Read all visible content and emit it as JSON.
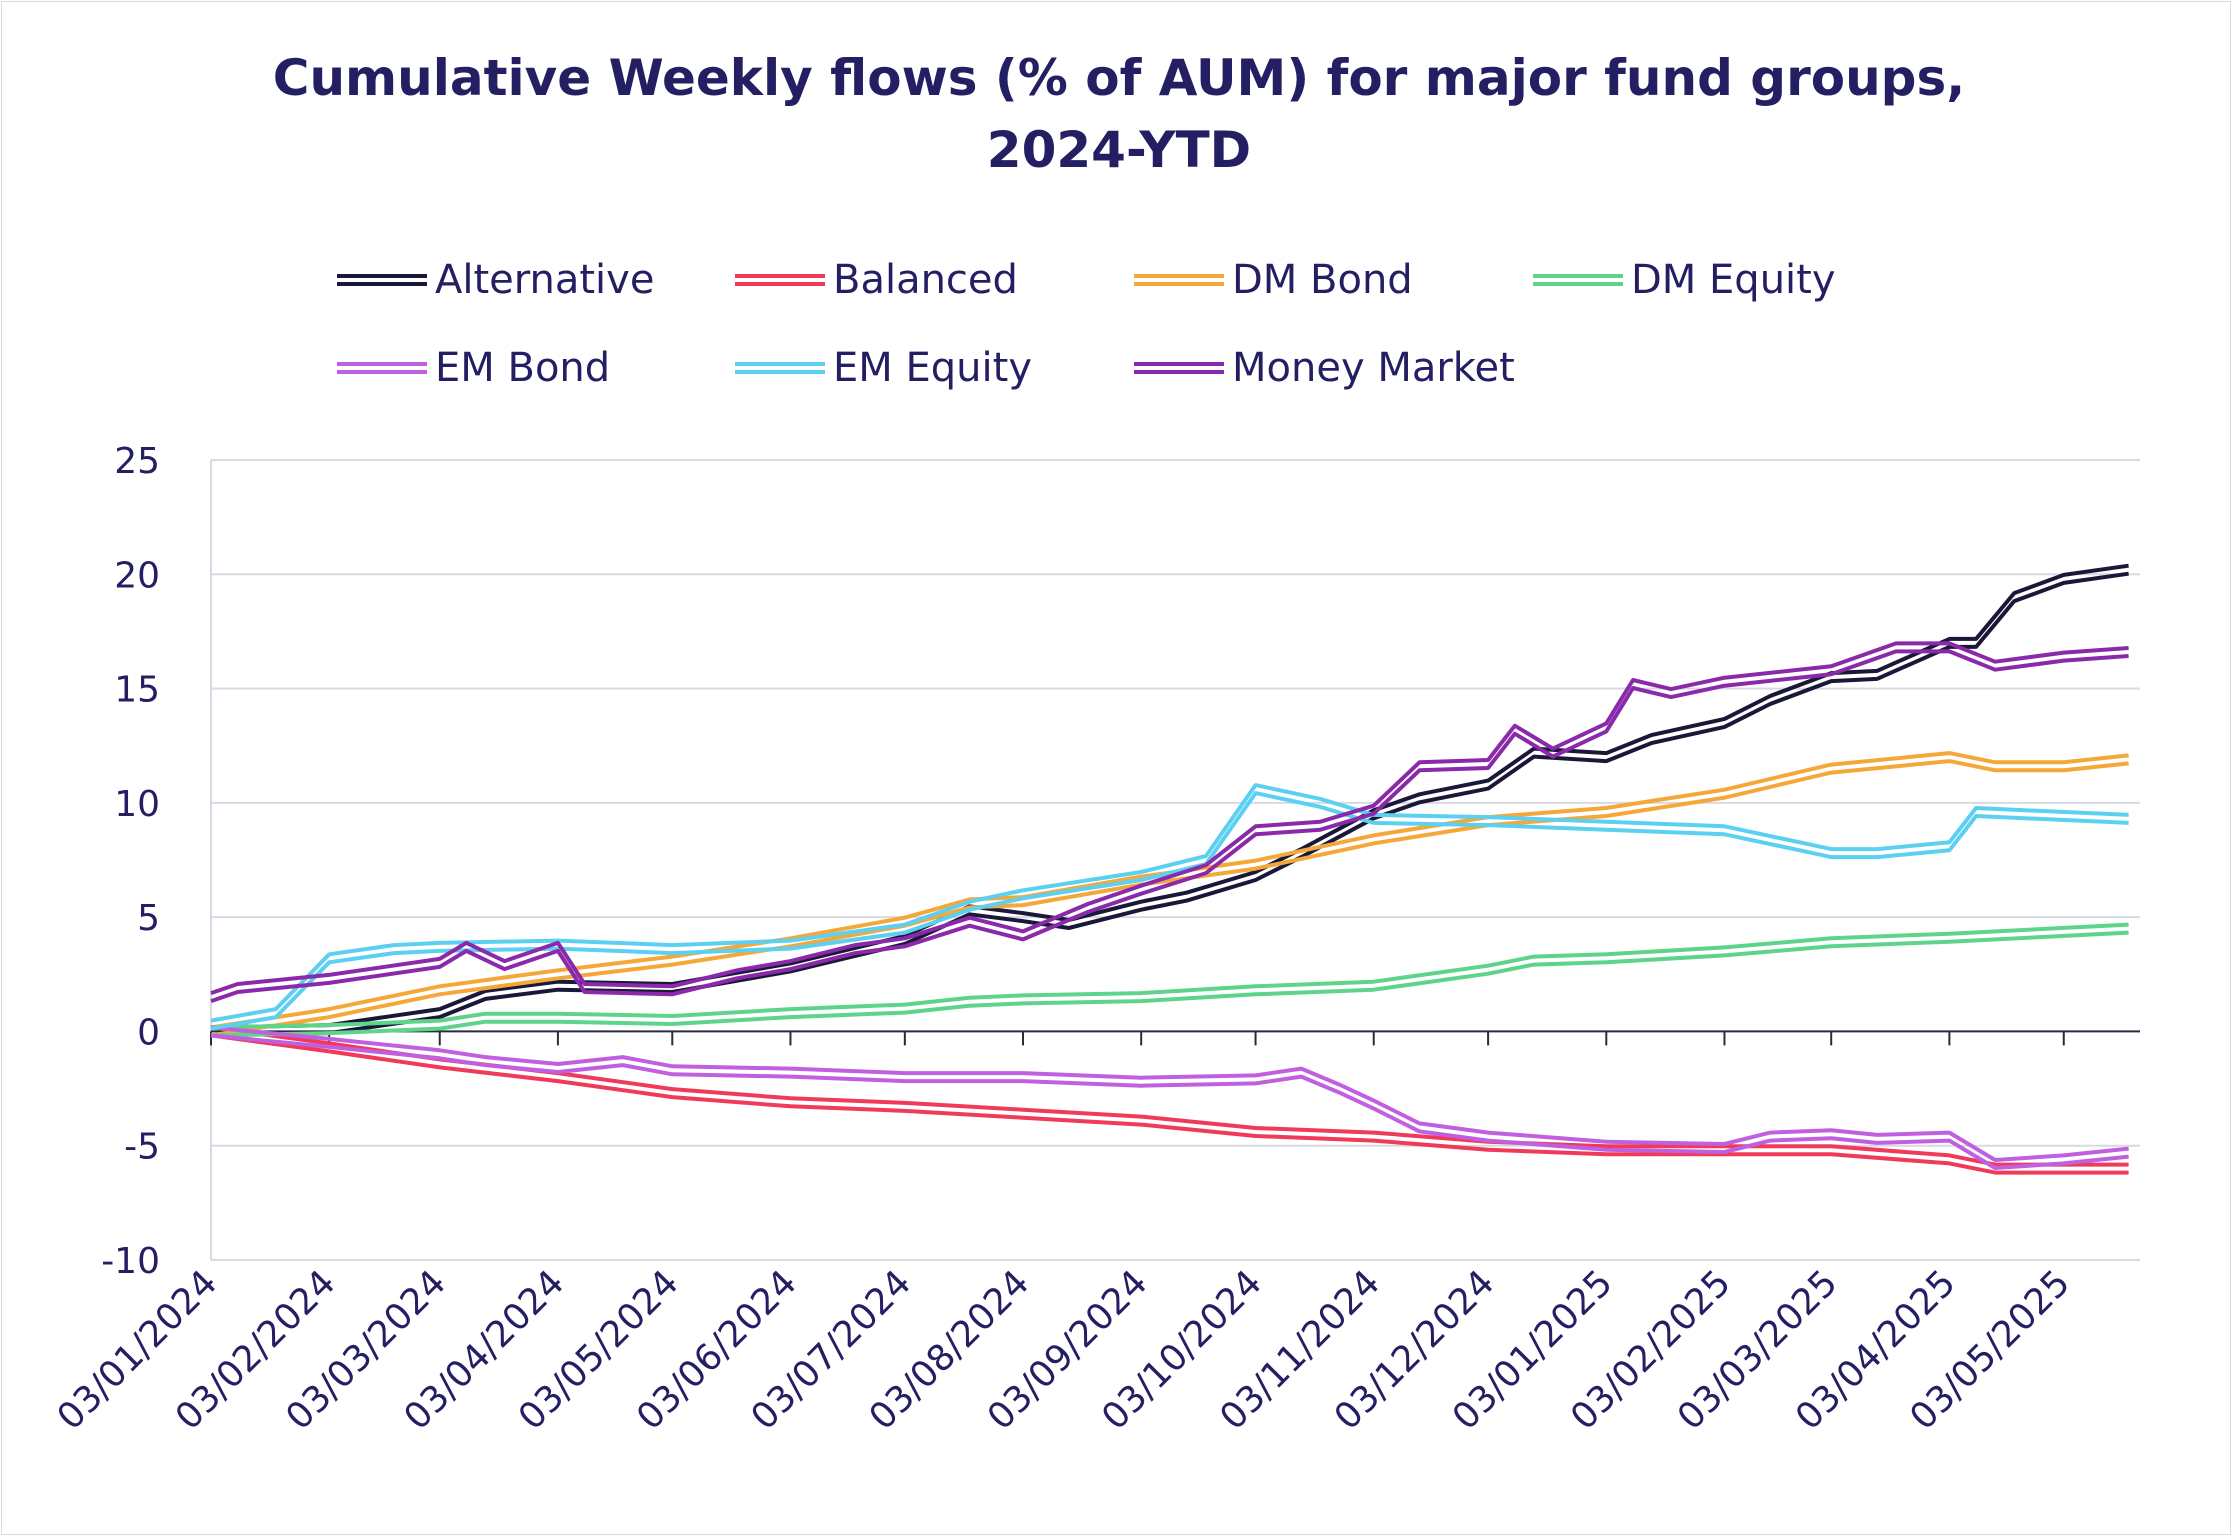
{
  "chart_data": {
    "type": "line",
    "title": "Cumulative Weekly flows (% of AUM) for major fund groups, 2024-YTD",
    "title_lines": [
      "Cumulative Weekly flows (% of AUM) for major fund groups,",
      "2024-YTD"
    ],
    "xlabel": "",
    "ylabel": "",
    "ylim": [
      -10,
      25
    ],
    "yticks": [
      -10,
      -5,
      0,
      5,
      10,
      15,
      20,
      25
    ],
    "x_tick_labels": [
      "03/01/2024",
      "03/02/2024",
      "03/03/2024",
      "03/04/2024",
      "03/05/2024",
      "03/06/2024",
      "03/07/2024",
      "03/08/2024",
      "03/09/2024",
      "03/10/2024",
      "03/11/2024",
      "03/12/2024",
      "03/01/2025",
      "03/02/2025",
      "03/03/2025",
      "03/04/2025",
      "03/05/2025"
    ],
    "x_label_rotation": "-45deg",
    "grid": "horizontal",
    "legend_position": "top",
    "series": [
      {
        "name": "Alternative",
        "color": "#1a1838",
        "points": [
          [
            "03/01/2024",
            0
          ],
          [
            "03/02/2024",
            0.1
          ],
          [
            "03/03/2024",
            0.8
          ],
          [
            "15/03/2024",
            1.6
          ],
          [
            "03/04/2024",
            2.0
          ],
          [
            "03/05/2024",
            1.9
          ],
          [
            "03/06/2024",
            2.8
          ],
          [
            "03/07/2024",
            4.0
          ],
          [
            "20/07/2024",
            5.3
          ],
          [
            "03/08/2024",
            5.0
          ],
          [
            "15/08/2024",
            4.7
          ],
          [
            "03/09/2024",
            5.5
          ],
          [
            "15/09/2024",
            5.9
          ],
          [
            "03/10/2024",
            6.8
          ],
          [
            "15/10/2024",
            7.8
          ],
          [
            "03/11/2024",
            9.5
          ],
          [
            "15/11/2024",
            10.2
          ],
          [
            "03/12/2024",
            10.8
          ],
          [
            "15/12/2024",
            12.2
          ],
          [
            "03/01/2025",
            12.0
          ],
          [
            "15/01/2025",
            12.8
          ],
          [
            "03/02/2025",
            13.5
          ],
          [
            "15/02/2025",
            14.5
          ],
          [
            "03/03/2025",
            15.5
          ],
          [
            "15/03/2025",
            15.6
          ],
          [
            "03/04/2025",
            17.0
          ],
          [
            "10/04/2025",
            17.0
          ],
          [
            "20/04/2025",
            19.0
          ],
          [
            "03/05/2025",
            19.8
          ],
          [
            "20/05/2025",
            20.2
          ]
        ]
      },
      {
        "name": "Balanced",
        "color": "#f03a5a",
        "points": [
          [
            "03/01/2024",
            0
          ],
          [
            "03/02/2024",
            -0.7
          ],
          [
            "03/03/2024",
            -1.4
          ],
          [
            "03/04/2024",
            -2.0
          ],
          [
            "03/05/2024",
            -2.7
          ],
          [
            "03/06/2024",
            -3.1
          ],
          [
            "03/07/2024",
            -3.3
          ],
          [
            "03/08/2024",
            -3.6
          ],
          [
            "03/09/2024",
            -3.9
          ],
          [
            "03/10/2024",
            -4.4
          ],
          [
            "03/11/2024",
            -4.6
          ],
          [
            "03/12/2024",
            -5.0
          ],
          [
            "03/01/2025",
            -5.2
          ],
          [
            "03/02/2025",
            -5.2
          ],
          [
            "03/03/2025",
            -5.2
          ],
          [
            "03/04/2025",
            -5.6
          ],
          [
            "15/04/2025",
            -6.0
          ],
          [
            "20/05/2025",
            -6.0
          ]
        ]
      },
      {
        "name": "DM Bond",
        "color": "#f5a83a",
        "points": [
          [
            "03/01/2024",
            0
          ],
          [
            "03/02/2024",
            0.8
          ],
          [
            "03/03/2024",
            1.8
          ],
          [
            "03/04/2024",
            2.5
          ],
          [
            "03/05/2024",
            3.1
          ],
          [
            "03/06/2024",
            3.9
          ],
          [
            "03/07/2024",
            4.8
          ],
          [
            "20/07/2024",
            5.6
          ],
          [
            "03/08/2024",
            5.7
          ],
          [
            "03/09/2024",
            6.6
          ],
          [
            "03/10/2024",
            7.3
          ],
          [
            "03/11/2024",
            8.4
          ],
          [
            "03/12/2024",
            9.2
          ],
          [
            "03/01/2025",
            9.6
          ],
          [
            "03/02/2025",
            10.4
          ],
          [
            "03/03/2025",
            11.5
          ],
          [
            "03/04/2025",
            12.0
          ],
          [
            "15/04/2025",
            11.6
          ],
          [
            "03/05/2025",
            11.6
          ],
          [
            "20/05/2025",
            11.9
          ]
        ]
      },
      {
        "name": "DM Equity",
        "color": "#5ed48a",
        "points": [
          [
            "03/01/2024",
            0
          ],
          [
            "03/02/2024",
            0.1
          ],
          [
            "03/03/2024",
            0.3
          ],
          [
            "15/03/2024",
            0.6
          ],
          [
            "03/04/2024",
            0.6
          ],
          [
            "03/05/2024",
            0.5
          ],
          [
            "03/06/2024",
            0.8
          ],
          [
            "03/07/2024",
            1.0
          ],
          [
            "20/07/2024",
            1.3
          ],
          [
            "03/08/2024",
            1.4
          ],
          [
            "03/09/2024",
            1.5
          ],
          [
            "03/10/2024",
            1.8
          ],
          [
            "03/11/2024",
            2.0
          ],
          [
            "03/12/2024",
            2.7
          ],
          [
            "15/12/2024",
            3.1
          ],
          [
            "03/01/2025",
            3.2
          ],
          [
            "03/02/2025",
            3.5
          ],
          [
            "03/03/2025",
            3.9
          ],
          [
            "03/04/2025",
            4.1
          ],
          [
            "20/05/2025",
            4.5
          ]
        ]
      },
      {
        "name": "EM Bond",
        "color": "#c060e0",
        "points": [
          [
            "03/01/2024",
            0
          ],
          [
            "03/02/2024",
            -0.5
          ],
          [
            "03/03/2024",
            -1.0
          ],
          [
            "15/03/2024",
            -1.3
          ],
          [
            "03/04/2024",
            -1.6
          ],
          [
            "20/04/2024",
            -1.3
          ],
          [
            "03/05/2024",
            -1.7
          ],
          [
            "03/06/2024",
            -1.8
          ],
          [
            "03/07/2024",
            -2.0
          ],
          [
            "03/08/2024",
            -2.0
          ],
          [
            "03/09/2024",
            -2.2
          ],
          [
            "03/10/2024",
            -2.1
          ],
          [
            "15/10/2024",
            -1.8
          ],
          [
            "25/10/2024",
            -2.5
          ],
          [
            "03/11/2024",
            -3.2
          ],
          [
            "15/11/2024",
            -4.2
          ],
          [
            "03/12/2024",
            -4.6
          ],
          [
            "03/01/2025",
            -5.0
          ],
          [
            "03/02/2025",
            -5.1
          ],
          [
            "15/02/2025",
            -4.6
          ],
          [
            "03/03/2025",
            -4.5
          ],
          [
            "15/03/2025",
            -4.7
          ],
          [
            "03/04/2025",
            -4.6
          ],
          [
            "15/04/2025",
            -5.8
          ],
          [
            "03/05/2025",
            -5.6
          ],
          [
            "20/05/2025",
            -5.3
          ]
        ]
      },
      {
        "name": "EM Equity",
        "color": "#5cd0f0",
        "points": [
          [
            "03/01/2024",
            0.3
          ],
          [
            "20/01/2024",
            0.8
          ],
          [
            "03/02/2024",
            3.2
          ],
          [
            "20/02/2024",
            3.6
          ],
          [
            "03/03/2024",
            3.7
          ],
          [
            "03/04/2024",
            3.8
          ],
          [
            "03/05/2024",
            3.6
          ],
          [
            "03/06/2024",
            3.8
          ],
          [
            "03/07/2024",
            4.5
          ],
          [
            "20/07/2024",
            5.5
          ],
          [
            "03/08/2024",
            6.0
          ],
          [
            "03/09/2024",
            6.8
          ],
          [
            "20/09/2024",
            7.5
          ],
          [
            "03/10/2024",
            10.6
          ],
          [
            "20/10/2024",
            10.0
          ],
          [
            "03/11/2024",
            9.3
          ],
          [
            "03/12/2024",
            9.2
          ],
          [
            "03/01/2025",
            9.0
          ],
          [
            "03/02/2025",
            8.8
          ],
          [
            "03/03/2025",
            7.8
          ],
          [
            "15/03/2025",
            7.8
          ],
          [
            "03/04/2025",
            8.1
          ],
          [
            "10/04/2025",
            9.6
          ],
          [
            "20/05/2025",
            9.3
          ]
        ]
      },
      {
        "name": "Money Market",
        "color": "#8a2aaa",
        "points": [
          [
            "03/01/2024",
            1.5
          ],
          [
            "10/01/2024",
            1.9
          ],
          [
            "03/02/2024",
            2.3
          ],
          [
            "03/03/2024",
            3.0
          ],
          [
            "10/03/2024",
            3.7
          ],
          [
            "20/03/2024",
            2.9
          ],
          [
            "03/04/2024",
            3.7
          ],
          [
            "10/04/2024",
            1.9
          ],
          [
            "03/05/2024",
            1.8
          ],
          [
            "20/05/2024",
            2.5
          ],
          [
            "03/06/2024",
            2.9
          ],
          [
            "20/06/2024",
            3.6
          ],
          [
            "03/07/2024",
            3.9
          ],
          [
            "20/07/2024",
            4.8
          ],
          [
            "03/08/2024",
            4.2
          ],
          [
            "20/08/2024",
            5.4
          ],
          [
            "03/09/2024",
            6.2
          ],
          [
            "20/09/2024",
            7.1
          ],
          [
            "03/10/2024",
            8.8
          ],
          [
            "20/10/2024",
            9.0
          ],
          [
            "03/11/2024",
            9.7
          ],
          [
            "15/11/2024",
            11.6
          ],
          [
            "03/12/2024",
            11.7
          ],
          [
            "10/12/2024",
            13.2
          ],
          [
            "20/12/2024",
            12.2
          ],
          [
            "03/01/2025",
            13.3
          ],
          [
            "10/01/2025",
            15.2
          ],
          [
            "20/01/2025",
            14.8
          ],
          [
            "03/02/2025",
            15.3
          ],
          [
            "03/03/2025",
            15.8
          ],
          [
            "20/03/2025",
            16.8
          ],
          [
            "03/04/2025",
            16.8
          ],
          [
            "15/04/2025",
            16.0
          ],
          [
            "03/05/2025",
            16.4
          ],
          [
            "20/05/2025",
            16.6
          ]
        ]
      }
    ]
  }
}
